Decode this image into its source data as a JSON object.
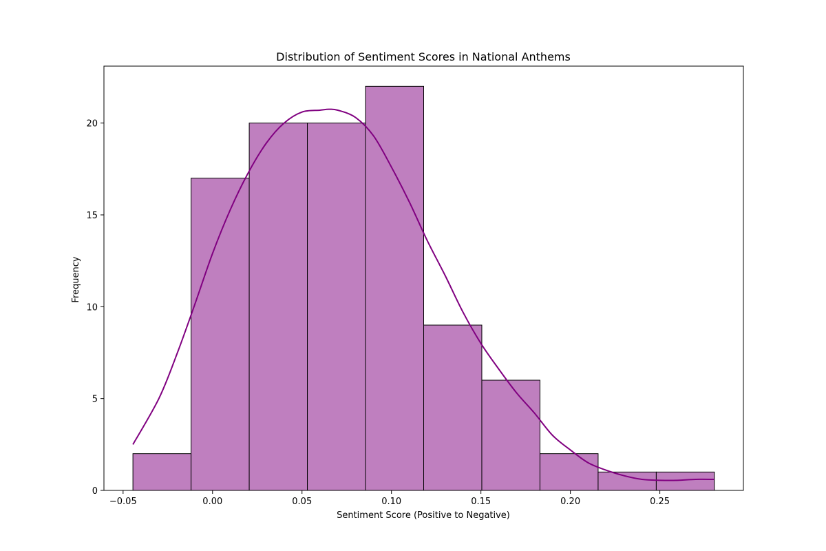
{
  "chart_data": {
    "type": "bar",
    "title": "Distribution of Sentiment Scores in National Anthems",
    "xlabel": "Sentiment Score (Positive to Negative)",
    "ylabel": "Frequency",
    "bin_edges": [
      -0.0445,
      -0.012,
      0.0205,
      0.053,
      0.0855,
      0.118,
      0.1505,
      0.183,
      0.2155,
      0.248,
      0.2805
    ],
    "values": [
      2,
      17,
      20,
      20,
      22,
      9,
      6,
      2,
      1,
      1
    ],
    "xlim": [
      -0.0607,
      0.2967
    ],
    "ylim": [
      0,
      23.1
    ],
    "x_ticks": [
      -0.05,
      0.0,
      0.05,
      0.1,
      0.15,
      0.2,
      0.25
    ],
    "x_tick_labels": [
      "−0.05",
      "0.00",
      "0.05",
      "0.10",
      "0.15",
      "0.20",
      "0.25"
    ],
    "y_ticks": [
      0,
      5,
      10,
      15,
      20
    ],
    "y_tick_labels": [
      "0",
      "5",
      "10",
      "15",
      "20"
    ],
    "kde": {
      "x": [
        -0.0445,
        -0.03,
        -0.02,
        -0.01,
        0.0,
        0.01,
        0.02,
        0.03,
        0.04,
        0.05,
        0.06,
        0.065,
        0.07,
        0.08,
        0.09,
        0.1,
        0.11,
        0.12,
        0.13,
        0.14,
        0.15,
        0.16,
        0.17,
        0.18,
        0.19,
        0.2,
        0.21,
        0.22,
        0.23,
        0.24,
        0.25,
        0.26,
        0.27,
        0.2805
      ],
      "y": [
        2.5,
        5.0,
        7.4,
        10.1,
        12.9,
        15.3,
        17.3,
        18.9,
        20.0,
        20.6,
        20.7,
        20.75,
        20.7,
        20.3,
        19.3,
        17.6,
        15.7,
        13.6,
        11.7,
        9.7,
        8.0,
        6.6,
        5.3,
        4.2,
        3.0,
        2.2,
        1.5,
        1.1,
        0.8,
        0.6,
        0.55,
        0.55,
        0.6,
        0.6
      ]
    },
    "bar_fill": "#bf7fbf",
    "bar_edge": "#000000",
    "kde_color": "#800080",
    "grid": false,
    "legend": "none"
  }
}
